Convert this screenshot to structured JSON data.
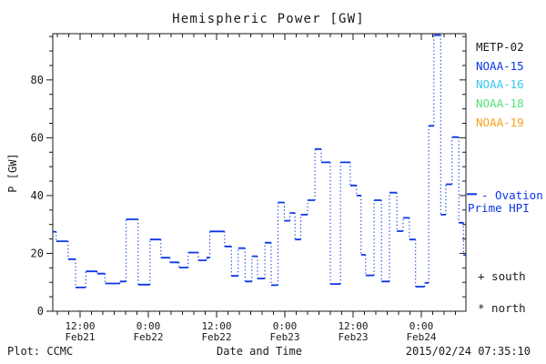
{
  "chart_data": {
    "type": "line",
    "subtype": "dotted-step-histogram",
    "title": "Hemispheric Power [GW]",
    "xlabel": "Date and Time",
    "ylabel": "P [GW]",
    "x_unit": "hours since 2015-02-21 00:00 UT",
    "x_range": [
      7.2,
      79.84
    ],
    "ylim": [
      0,
      96
    ],
    "y_ticks": [
      0,
      20,
      40,
      60,
      80
    ],
    "y_minor_step": 5,
    "x_minor_step_hours": 2,
    "grid": "off",
    "legend_position": "right",
    "x_major_ticks": [
      {
        "t": 12,
        "time": "12:00",
        "date": "Feb21"
      },
      {
        "t": 24,
        "time": "0:00",
        "date": "Feb22"
      },
      {
        "t": 36,
        "time": "12:00",
        "date": "Feb22"
      },
      {
        "t": 48,
        "time": "0:00",
        "date": "Feb23"
      },
      {
        "t": 60,
        "time": "12:00",
        "date": "Feb23"
      },
      {
        "t": 72,
        "time": "0:00",
        "date": "Feb24"
      }
    ],
    "series": [
      {
        "name": "NOAA-15 Ovation Prime HPI",
        "color": "#0a37e6",
        "style": "steps with dotted connectors",
        "end_t": 79.84,
        "steps": [
          [
            7.2,
            27.5
          ],
          [
            7.8,
            24.2
          ],
          [
            9.9,
            18.0
          ],
          [
            11.2,
            8.2
          ],
          [
            13.0,
            13.8
          ],
          [
            15.0,
            13.0
          ],
          [
            16.4,
            9.6
          ],
          [
            19.0,
            10.3
          ],
          [
            20.1,
            31.8
          ],
          [
            22.2,
            9.2
          ],
          [
            24.3,
            24.8
          ],
          [
            26.2,
            18.5
          ],
          [
            27.8,
            16.9
          ],
          [
            29.4,
            15.1
          ],
          [
            31.0,
            20.3
          ],
          [
            32.8,
            17.6
          ],
          [
            34.2,
            18.5
          ],
          [
            34.8,
            27.6
          ],
          [
            37.4,
            22.4
          ],
          [
            38.6,
            12.2
          ],
          [
            39.8,
            21.8
          ],
          [
            41.0,
            10.3
          ],
          [
            42.2,
            19.0
          ],
          [
            43.2,
            11.3
          ],
          [
            44.5,
            23.7
          ],
          [
            45.6,
            9.0
          ],
          [
            46.8,
            37.6
          ],
          [
            47.9,
            31.3
          ],
          [
            48.9,
            34.0
          ],
          [
            49.8,
            24.8
          ],
          [
            50.8,
            33.4
          ],
          [
            52.0,
            38.4
          ],
          [
            53.3,
            56.1
          ],
          [
            54.4,
            51.5
          ],
          [
            56.0,
            9.4
          ],
          [
            57.8,
            51.5
          ],
          [
            59.5,
            43.5
          ],
          [
            60.6,
            40.0
          ],
          [
            61.4,
            19.5
          ],
          [
            62.2,
            12.4
          ],
          [
            63.7,
            38.4
          ],
          [
            65.0,
            10.3
          ],
          [
            66.4,
            41.0
          ],
          [
            67.7,
            27.7
          ],
          [
            68.8,
            32.3
          ],
          [
            69.9,
            24.8
          ],
          [
            71.0,
            8.5
          ],
          [
            72.6,
            9.8
          ],
          [
            73.3,
            64.1
          ],
          [
            74.2,
            95.5
          ],
          [
            75.4,
            33.4
          ],
          [
            76.3,
            43.9
          ],
          [
            77.4,
            60.2
          ],
          [
            78.6,
            30.6
          ],
          [
            79.4,
            19.4
          ]
        ]
      }
    ],
    "annotations": {
      "hpi_marker_gw": 40.5
    }
  },
  "legend": {
    "satellites": [
      {
        "label": "METP-02",
        "color": "#1a1a1a"
      },
      {
        "label": "NOAA-15",
        "color": "#0a37e6"
      },
      {
        "label": "NOAA-16",
        "color": "#35c8f0"
      },
      {
        "label": "NOAA-18",
        "color": "#55e078"
      },
      {
        "label": "NOAA-19",
        "color": "#f5a01e"
      }
    ],
    "ovation_line1": "- Ovation",
    "ovation_line2": "Prime HPI",
    "ovation_color": "#0a37e6",
    "south_label": "+ south",
    "north_label": "* north"
  },
  "footer": {
    "left": "Plot: CCMC",
    "right": "2015/02/24 07:35:10"
  }
}
